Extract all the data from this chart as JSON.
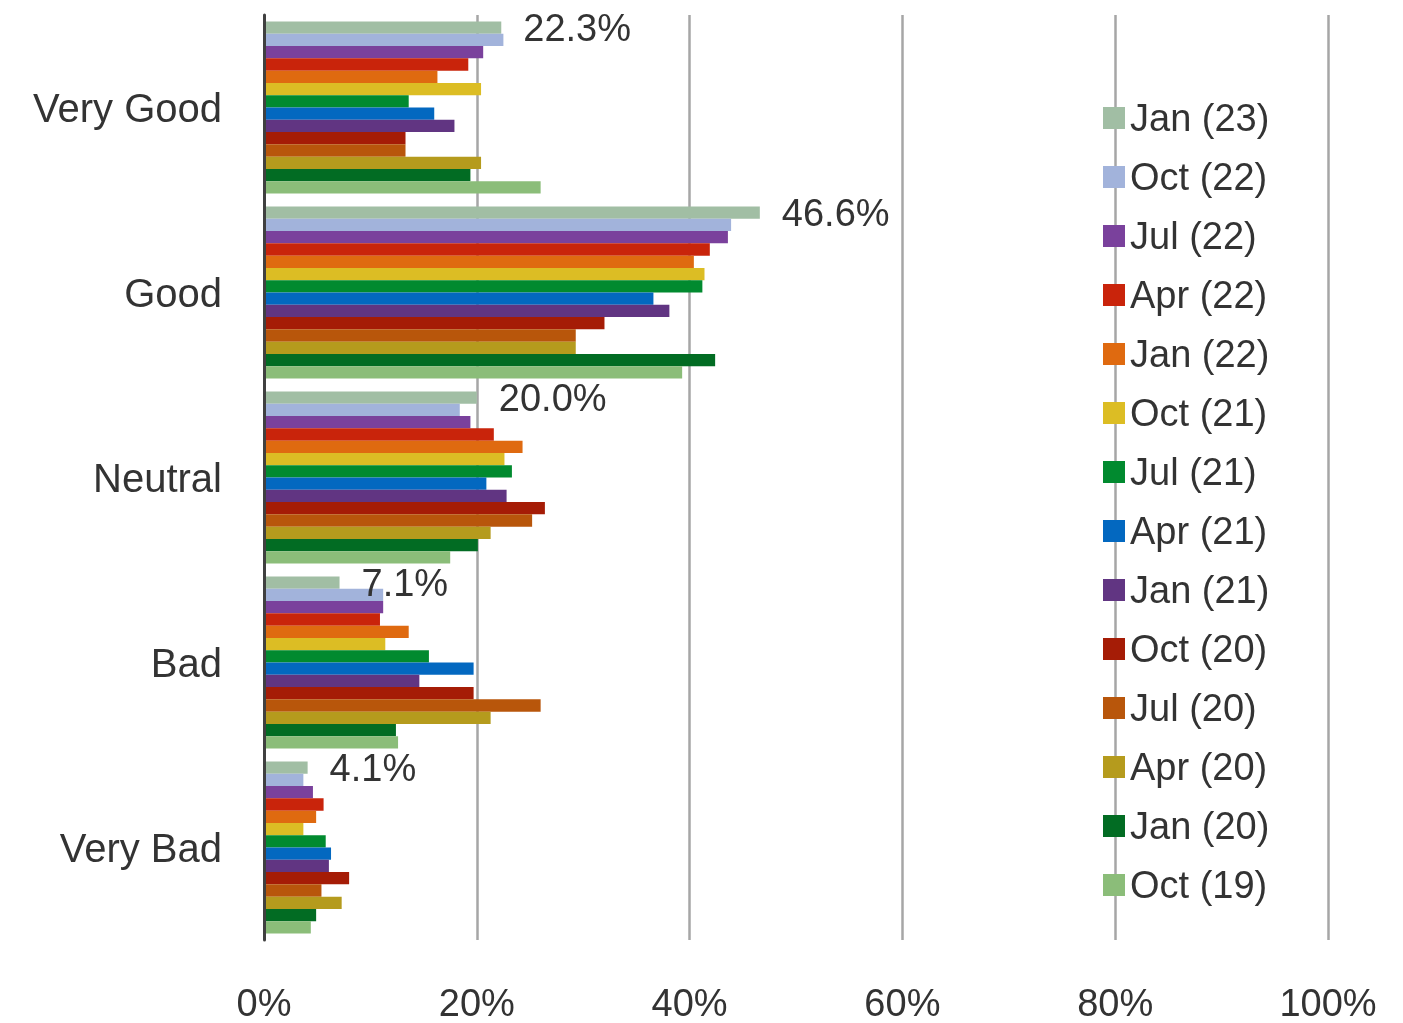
{
  "chart_data": {
    "type": "bar",
    "orientation": "horizontal",
    "categories": [
      "Very Good",
      "Good",
      "Neutral",
      "Bad",
      "Very Bad"
    ],
    "series": [
      {
        "name": "Jan (23)",
        "color": "#a1bea4",
        "values": [
          22.3,
          46.6,
          20.0,
          7.1,
          4.1
        ],
        "value_labels": [
          "22.3%",
          "46.6%",
          "20.0%",
          "7.1%",
          "4.1%"
        ]
      },
      {
        "name": "Oct (22)",
        "color": "#a2b3db",
        "values": [
          22.5,
          43.9,
          18.4,
          11.2,
          3.7
        ]
      },
      {
        "name": "Jul (22)",
        "color": "#7a419c",
        "values": [
          20.6,
          43.6,
          19.4,
          11.2,
          4.6
        ]
      },
      {
        "name": "Apr (22)",
        "color": "#c9240b",
        "values": [
          19.2,
          41.9,
          21.6,
          10.9,
          5.6
        ]
      },
      {
        "name": "Jan (22)",
        "color": "#df6a10",
        "values": [
          16.3,
          40.4,
          24.3,
          13.6,
          4.9
        ]
      },
      {
        "name": "Oct (21)",
        "color": "#dcbd24",
        "values": [
          20.4,
          41.4,
          22.6,
          11.4,
          3.7
        ]
      },
      {
        "name": "Jul (21)",
        "color": "#018a2f",
        "values": [
          13.6,
          41.2,
          23.3,
          15.5,
          5.8
        ]
      },
      {
        "name": "Apr (21)",
        "color": "#0368c0",
        "values": [
          16.0,
          36.6,
          20.9,
          19.7,
          6.3
        ]
      },
      {
        "name": "Jan (21)",
        "color": "#613582",
        "values": [
          17.9,
          38.1,
          22.8,
          14.6,
          6.1
        ]
      },
      {
        "name": "Oct (20)",
        "color": "#a51c06",
        "values": [
          13.3,
          32.0,
          26.4,
          19.7,
          8.0
        ]
      },
      {
        "name": "Jul (20)",
        "color": "#b8560b",
        "values": [
          13.3,
          29.3,
          25.2,
          26.0,
          5.4
        ]
      },
      {
        "name": "Apr (20)",
        "color": "#b59b1d",
        "values": [
          20.4,
          29.3,
          21.3,
          21.3,
          7.3
        ]
      },
      {
        "name": "Jan (20)",
        "color": "#026c23",
        "values": [
          19.4,
          42.4,
          20.1,
          12.4,
          4.9
        ]
      },
      {
        "name": "Oct (19)",
        "color": "#8bbd79",
        "values": [
          26.0,
          39.3,
          17.5,
          12.6,
          4.4
        ]
      }
    ],
    "xlim": [
      0,
      100
    ],
    "xticks": [
      {
        "value": 0,
        "label": "0%"
      },
      {
        "value": 20,
        "label": "20%"
      },
      {
        "value": 40,
        "label": "40%"
      },
      {
        "value": 60,
        "label": "60%"
      },
      {
        "value": 80,
        "label": "80%"
      },
      {
        "value": 100,
        "label": "100%"
      }
    ],
    "grid": "x",
    "legend": "right"
  }
}
